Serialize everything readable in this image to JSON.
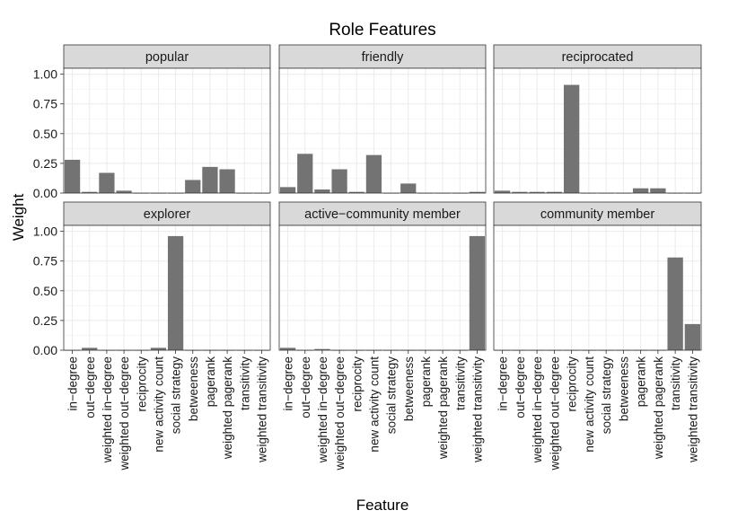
{
  "chart_data": {
    "type": "bar",
    "title": "Role Features",
    "xlabel": "Feature",
    "ylabel": "Weight",
    "ylim": [
      0,
      1.05
    ],
    "yticks": [
      "0.00",
      "0.25",
      "0.50",
      "0.75",
      "1.00"
    ],
    "ytick_values": [
      0,
      0.25,
      0.5,
      0.75,
      1.0
    ],
    "layout": "facet grid 2 rows x 3 columns",
    "grid": true,
    "bar_color": "#737373",
    "categories": [
      "in−degree",
      "out−degree",
      "weighted in−degree",
      "weighted out−degree",
      "reciprocity",
      "new activity count",
      "social strategy",
      "betweeness",
      "pagerank",
      "weighted pagerank",
      "transitivity",
      "weighted transitivity"
    ],
    "panels": [
      {
        "name": "popular",
        "values": [
          0.28,
          0.01,
          0.17,
          0.02,
          0.0,
          0.0,
          0.0,
          0.11,
          0.22,
          0.2,
          0.0,
          0.0
        ]
      },
      {
        "name": "friendly",
        "values": [
          0.05,
          0.33,
          0.03,
          0.2,
          0.01,
          0.32,
          0.0,
          0.08,
          0.0,
          0.0,
          0.0,
          0.01
        ]
      },
      {
        "name": "reciprocated",
        "values": [
          0.02,
          0.01,
          0.01,
          0.01,
          0.91,
          0.0,
          0.0,
          0.0,
          0.04,
          0.04,
          0.0,
          0.0
        ]
      },
      {
        "name": "explorer",
        "values": [
          0.0,
          0.02,
          0.0,
          0.0,
          0.0,
          0.02,
          0.96,
          0.0,
          0.0,
          0.0,
          0.0,
          0.0
        ]
      },
      {
        "name": "active−community member",
        "values": [
          0.02,
          0.0,
          0.01,
          0.0,
          0.0,
          0.0,
          0.0,
          0.0,
          0.0,
          0.0,
          0.0,
          0.96
        ]
      },
      {
        "name": "community member",
        "values": [
          0.0,
          0.0,
          0.0,
          0.0,
          0.0,
          0.0,
          0.0,
          0.0,
          0.0,
          0.0,
          0.78,
          0.22
        ]
      }
    ]
  }
}
